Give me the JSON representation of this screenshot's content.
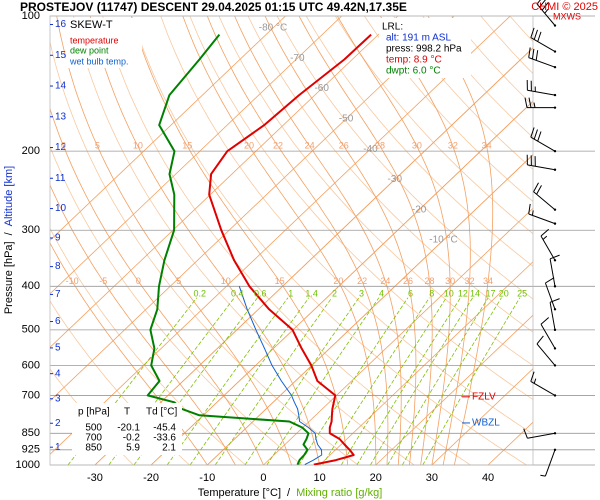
{
  "title": "PROSTEJOV (11747)   DESCENT   29.04.2025 01:15 UTC  49.42N,17.35E",
  "copyright": "CHMI © 2025",
  "mxws": "MXWS",
  "chart_data": {
    "type": "skewt",
    "legend": {
      "title": "SKEW-T"
    },
    "xlabel": {
      "temperature": "Temperature [°C]",
      "separator": "/",
      "mixing": "Mixing ratio [g/kg]"
    },
    "ylabel": {
      "pressure": "Pressure [hPa]",
      "separator": "/",
      "altitude": "Altitude [km]"
    },
    "log_y": true,
    "xlim": [
      -38,
      48
    ],
    "ylim": [
      1000,
      100
    ],
    "xticks": [
      -30,
      -20,
      -10,
      0,
      10,
      20,
      30,
      40
    ],
    "yticks": [
      100,
      200,
      300,
      400,
      500,
      600,
      700,
      850,
      925,
      1000
    ],
    "altitude_ticks": [
      1,
      2,
      3,
      4,
      5,
      6,
      7,
      8,
      9,
      10,
      11,
      12,
      13,
      14,
      15,
      16
    ],
    "isotherm_labels": [
      {
        "value": -80,
        "label": "-80 °C"
      },
      -70,
      -60,
      -50,
      -40,
      -30,
      -20,
      {
        "value": -10,
        "label": "-10 °C"
      }
    ],
    "mixing_ratio": [
      0.2,
      0.4,
      0.6,
      1,
      1.4,
      2,
      3,
      4,
      6,
      8,
      10,
      12,
      14,
      17,
      20,
      25
    ],
    "moist_adiabats": [
      -10,
      -5,
      0,
      5,
      10,
      15,
      20,
      22,
      24,
      26,
      28,
      30,
      32,
      34
    ],
    "pressure": [
      998,
      975,
      950,
      925,
      900,
      875,
      850,
      825,
      800,
      775,
      750,
      725,
      700,
      650,
      600,
      550,
      500,
      450,
      400,
      350,
      300,
      250,
      225,
      200,
      175,
      150,
      125,
      110
    ],
    "series": [
      {
        "name": "temperature",
        "color": "#e00000",
        "values": [
          8.9,
          12.0,
          14.2,
          12.5,
          10.6,
          8.7,
          5.9,
          4.8,
          4.0,
          2.9,
          1.8,
          0.8,
          -0.2,
          -6.1,
          -10.1,
          -15.0,
          -20.1,
          -28.1,
          -35.9,
          -43.5,
          -51.4,
          -60.2,
          -63.7,
          -65.1,
          -63.4,
          -62.8,
          -61.4,
          -61.3
        ]
      },
      {
        "name": "dew point",
        "color": "#008000",
        "values": [
          6.0,
          5.5,
          5.4,
          5.0,
          3.3,
          2.8,
          2.1,
          -0.1,
          -3.5,
          -20.7,
          -25.0,
          -27.6,
          -33.6,
          -34.2,
          -38.6,
          -41.2,
          -45.4,
          -48.0,
          -52.0,
          -55.9,
          -59.8,
          -66.4,
          -71.1,
          -74.5,
          -82.1,
          -85.9,
          -87.2,
          -88.3
        ]
      },
      {
        "name": "wet bulb temp.",
        "color": "#1060d0",
        "values": [
          7.3,
          8.0,
          8.5,
          7.5,
          5.8,
          4.5,
          3.3,
          1.0,
          -1.7,
          -3.0,
          -4.4,
          -6.2,
          -8.0,
          -12.5,
          -17.1,
          -21.6,
          -26.6,
          -32.0,
          -37.7,
          null,
          null,
          null,
          null,
          null,
          null,
          null,
          null,
          null
        ]
      }
    ],
    "wind": {
      "pressure": [
        105,
        120,
        130,
        150,
        160,
        200,
        220,
        270,
        290,
        350,
        400,
        450,
        500,
        550,
        600,
        700,
        850,
        925
      ],
      "direction": [
        320,
        300,
        290,
        280,
        270,
        300,
        280,
        310,
        290,
        330,
        350,
        340,
        350,
        330,
        320,
        300,
        260,
        200
      ],
      "speed": [
        35,
        30,
        30,
        25,
        25,
        30,
        30,
        20,
        15,
        15,
        10,
        10,
        10,
        10,
        10,
        15,
        10,
        5
      ]
    },
    "annotations": [
      {
        "label": "FZLV",
        "pressure": 705,
        "color": "#e00000"
      },
      {
        "label": "WBZL",
        "pressure": 806,
        "color": "#1060d0"
      }
    ],
    "lrl": {
      "title": "LRL:",
      "alt": "alt: 191 m ASL",
      "press": "press: 998.2 hPa",
      "temp": "temp: 8.9 °C",
      "dwpt": "dwpt: 6.0 °C"
    },
    "levels_table": {
      "header": [
        "p [hPa]",
        "T",
        "Td [°C]"
      ],
      "rows": [
        [
          500,
          -20.1,
          -45.4
        ],
        [
          700,
          -0.2,
          -33.6
        ],
        [
          850,
          5.9,
          2.1
        ]
      ]
    }
  }
}
